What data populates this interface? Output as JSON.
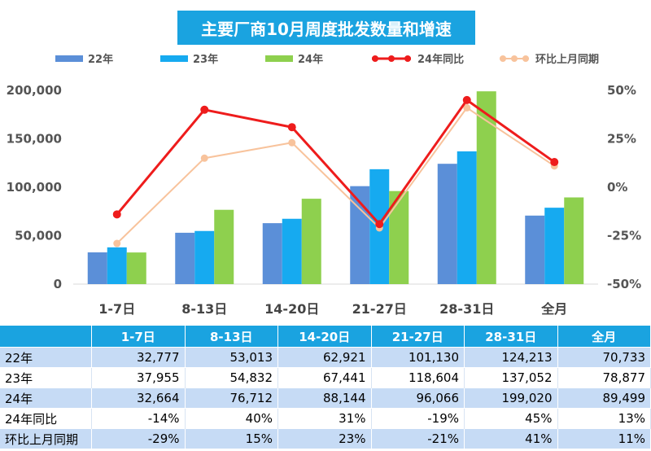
{
  "chart_data": {
    "type": "bar",
    "title": "主要厂商10月周度批发数量和增速",
    "categories": [
      "1-7日",
      "8-13日",
      "14-20日",
      "21-27日",
      "28-31日",
      "全月"
    ],
    "y_left_ticks": [
      "0",
      "50,000",
      "100,000",
      "150,000",
      "200,000"
    ],
    "y_right_ticks": [
      "-50%",
      "-25%",
      "0%",
      "25%",
      "50%"
    ],
    "ylim_left": [
      0,
      200000
    ],
    "ylim_right": [
      -50,
      50
    ],
    "series": [
      {
        "name": "22年",
        "kind": "bar",
        "axis": "left",
        "color": "#5b8fd8",
        "values": [
          32777,
          53013,
          62921,
          101130,
          124213,
          70733
        ]
      },
      {
        "name": "23年",
        "kind": "bar",
        "axis": "left",
        "color": "#16aaf0",
        "values": [
          37955,
          54832,
          67441,
          118604,
          137052,
          78877
        ]
      },
      {
        "name": "24年",
        "kind": "bar",
        "axis": "left",
        "color": "#8ed04e",
        "values": [
          32664,
          76712,
          88144,
          96066,
          199020,
          89499
        ]
      },
      {
        "name": "24年同比",
        "kind": "line",
        "axis": "right",
        "color": "#ee1c1c",
        "values": [
          -14,
          40,
          31,
          -19,
          45,
          13
        ]
      },
      {
        "name": "环比上月同期",
        "kind": "line",
        "axis": "right",
        "color": "#f8c39c",
        "values": [
          -29,
          15,
          23,
          -21,
          41,
          11
        ]
      }
    ]
  },
  "table": {
    "header": [
      "",
      "1-7日",
      "8-13日",
      "14-20日",
      "21-27日",
      "28-31日",
      "全月"
    ],
    "rows": [
      {
        "label": "22年",
        "cells": [
          "32,777",
          "53,013",
          "62,921",
          "101,130",
          "124,213",
          "70,733"
        ]
      },
      {
        "label": "23年",
        "cells": [
          "37,955",
          "54,832",
          "67,441",
          "118,604",
          "137,052",
          "78,877"
        ]
      },
      {
        "label": "24年",
        "cells": [
          "32,664",
          "76,712",
          "88,144",
          "96,066",
          "199,020",
          "89,499"
        ]
      },
      {
        "label": "24年同比",
        "cells": [
          "-14%",
          "40%",
          "31%",
          "-19%",
          "45%",
          "13%"
        ]
      },
      {
        "label": "环比上月同期",
        "cells": [
          "-29%",
          "15%",
          "23%",
          "-21%",
          "41%",
          "11%"
        ]
      }
    ]
  }
}
